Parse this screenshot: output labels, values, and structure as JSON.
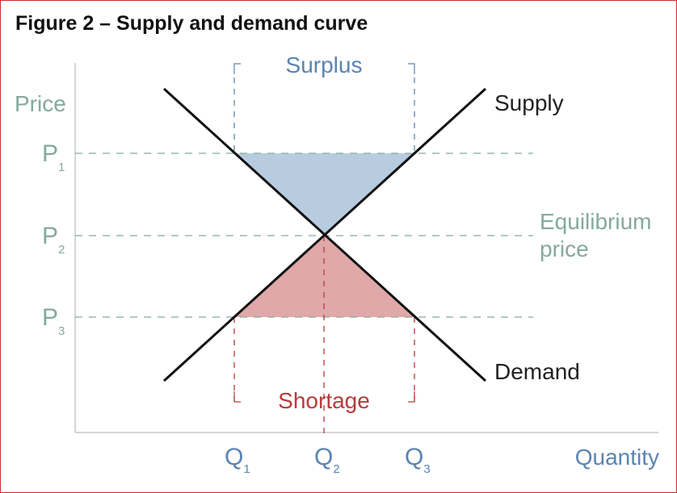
{
  "title": "Figure 2 – Supply and demand curve",
  "axes": {
    "y_label": "Price",
    "x_label": "Quantity"
  },
  "price_levels": [
    {
      "main": "P",
      "sub": "1"
    },
    {
      "main": "P",
      "sub": "2"
    },
    {
      "main": "P",
      "sub": "3"
    }
  ],
  "quantity_levels": [
    {
      "main": "Q",
      "sub": "1"
    },
    {
      "main": "Q",
      "sub": "2"
    },
    {
      "main": "Q",
      "sub": "3"
    }
  ],
  "curves": {
    "supply_label": "Supply",
    "demand_label": "Demand"
  },
  "regions": {
    "surplus_label": "Surplus",
    "shortage_label": "Shortage"
  },
  "equilibrium": {
    "line1": "Equilibrium",
    "line2": "price"
  },
  "colors": {
    "border": "#c9302c",
    "curve": "#111111",
    "surplus_fill": "#b8cce0",
    "shortage_fill": "#e0a8a8",
    "teal_text": "#84aa9b",
    "blue_text": "#5b84b1",
    "red_text": "#b63c3c"
  }
}
